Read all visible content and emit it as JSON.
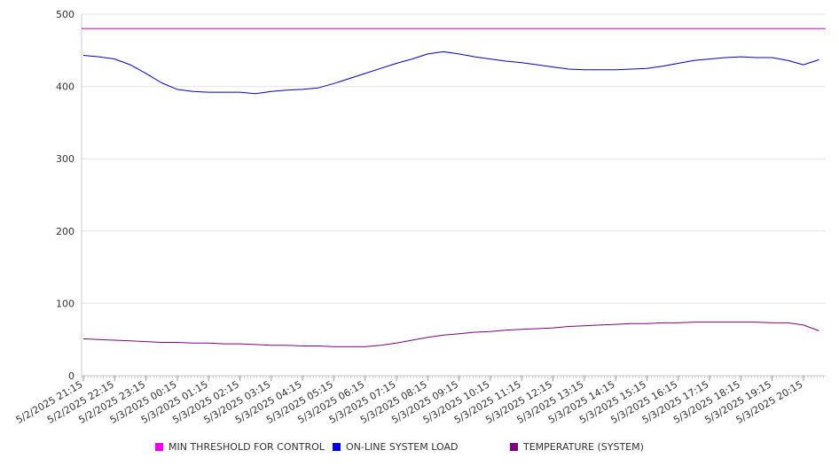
{
  "chart_data": {
    "type": "line",
    "title": "",
    "xlabel": "",
    "ylabel": "",
    "ylim": [
      0,
      500
    ],
    "y_ticks": [
      0,
      100,
      200,
      300,
      400,
      500
    ],
    "grid": true,
    "legend_position": "bottom",
    "x_ticks": [
      "5/2/2025 21:15",
      "5/2/2025 22:15",
      "5/2/2025 23:15",
      "5/3/2025 00:15",
      "5/3/2025 01:15",
      "5/3/2025 02:15",
      "5/3/2025 03:15",
      "5/3/2025 04:15",
      "5/3/2025 05:15",
      "5/3/2025 06:15",
      "5/3/2025 07:15",
      "5/3/2025 08:15",
      "5/3/2025 09:15",
      "5/3/2025 10:15",
      "5/3/2025 11:15",
      "5/3/2025 12:15",
      "5/3/2025 13:15",
      "5/3/2025 14:15",
      "5/3/2025 15:15",
      "5/3/2025 16:15",
      "5/3/2025 17:15",
      "5/3/2025 18:15",
      "5/3/2025 19:15",
      "5/3/2025 20:15"
    ],
    "x": [
      "5/2/2025 21:15",
      "5/2/2025 21:45",
      "5/2/2025 22:15",
      "5/2/2025 22:45",
      "5/2/2025 23:15",
      "5/2/2025 23:45",
      "5/3/2025 00:15",
      "5/3/2025 00:45",
      "5/3/2025 01:15",
      "5/3/2025 01:45",
      "5/3/2025 02:15",
      "5/3/2025 02:45",
      "5/3/2025 03:15",
      "5/3/2025 03:45",
      "5/3/2025 04:15",
      "5/3/2025 04:45",
      "5/3/2025 05:15",
      "5/3/2025 05:45",
      "5/3/2025 06:15",
      "5/3/2025 06:45",
      "5/3/2025 07:15",
      "5/3/2025 07:45",
      "5/3/2025 08:15",
      "5/3/2025 08:45",
      "5/3/2025 09:15",
      "5/3/2025 09:45",
      "5/3/2025 10:15",
      "5/3/2025 10:45",
      "5/3/2025 11:15",
      "5/3/2025 11:45",
      "5/3/2025 12:15",
      "5/3/2025 12:45",
      "5/3/2025 13:15",
      "5/3/2025 13:45",
      "5/3/2025 14:15",
      "5/3/2025 14:45",
      "5/3/2025 15:15",
      "5/3/2025 15:45",
      "5/3/2025 16:15",
      "5/3/2025 16:45",
      "5/3/2025 17:15",
      "5/3/2025 17:45",
      "5/3/2025 18:15",
      "5/3/2025 18:45",
      "5/3/2025 19:15",
      "5/3/2025 19:45",
      "5/3/2025 20:15",
      "5/3/2025 20:45"
    ],
    "series": [
      {
        "name": "MIN THRESHOLD FOR CONTROL",
        "color": "#cc00cc",
        "values": [
          480,
          480,
          480,
          480,
          480,
          480,
          480,
          480,
          480,
          480,
          480,
          480,
          480,
          480,
          480,
          480,
          480,
          480,
          480,
          480,
          480,
          480,
          480,
          480,
          480,
          480,
          480,
          480,
          480,
          480,
          480,
          480,
          480,
          480,
          480,
          480,
          480,
          480,
          480,
          480,
          480,
          480,
          480,
          480,
          480,
          480,
          480,
          480
        ]
      },
      {
        "name": "ON-LINE SYSTEM LOAD",
        "color": "#0000cc",
        "values": [
          443,
          441,
          438,
          430,
          418,
          405,
          396,
          393,
          392,
          392,
          392,
          390,
          393,
          395,
          396,
          398,
          404,
          411,
          418,
          425,
          432,
          438,
          445,
          448,
          445,
          441,
          438,
          435,
          433,
          430,
          427,
          424,
          423,
          423,
          423,
          424,
          425,
          428,
          432,
          436,
          438,
          440,
          441,
          440,
          440,
          436,
          430,
          437
        ]
      },
      {
        "name": "TEMPERATURE (SYSTEM)",
        "color": "#800080",
        "values": [
          51,
          50,
          49,
          48,
          47,
          46,
          46,
          45,
          45,
          44,
          44,
          43,
          42,
          42,
          41,
          41,
          40,
          40,
          40,
          42,
          45,
          49,
          53,
          56,
          58,
          60,
          61,
          63,
          64,
          65,
          66,
          68,
          69,
          70,
          71,
          72,
          72,
          73,
          73,
          74,
          74,
          74,
          74,
          74,
          73,
          73,
          70,
          62
        ]
      }
    ]
  }
}
